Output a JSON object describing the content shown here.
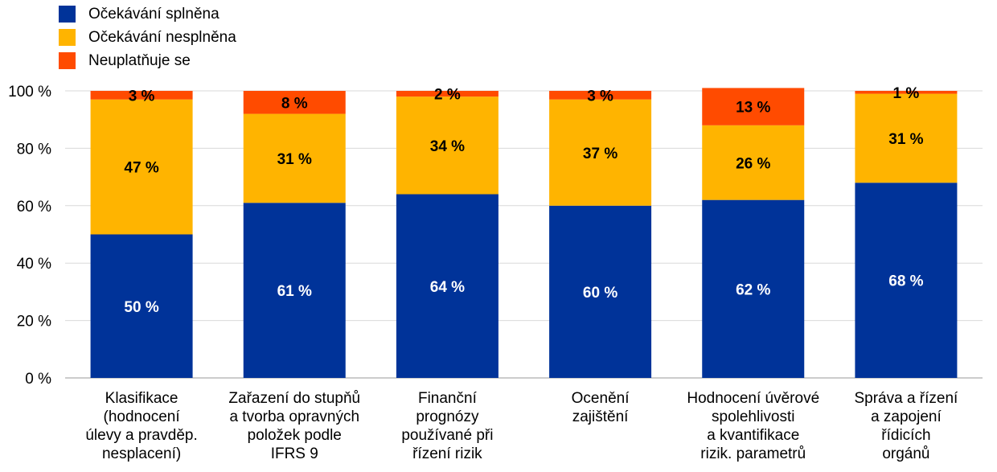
{
  "chart_data": {
    "type": "bar",
    "stacked": true,
    "percent": true,
    "title": "",
    "xlabel": "",
    "ylabel": "",
    "ylim": [
      0,
      100
    ],
    "y_ticks": [
      "0 %",
      "20 %",
      "40 %",
      "60 %",
      "80 %",
      "100 %"
    ],
    "grid": true,
    "legend_position": "top-left",
    "categories": [
      [
        "Klasifikace",
        "(hodnocení",
        "úlevy a pravděp.",
        "nesplacení)"
      ],
      [
        "Zařazení do stupňů",
        "a tvorba opravných",
        "položek podle",
        "IFRS 9"
      ],
      [
        "Finanční",
        "prognózy",
        "používané při",
        "řízení rizik"
      ],
      [
        "Ocenění",
        "zajištění"
      ],
      [
        "Hodnocení úvěrové",
        "spolehlivosti",
        "a kvantifikace",
        "rizik. parametrů"
      ],
      [
        "Správa a řízení",
        "a zapojení",
        "řídicích",
        "orgánů"
      ]
    ],
    "series": [
      {
        "name": "Očekávání splněna",
        "color": "#003399",
        "label_color": "#ffffff",
        "values": [
          50,
          61,
          64,
          60,
          62,
          68
        ],
        "labels": [
          "50 %",
          "61 %",
          "64 %",
          "60 %",
          "62 %",
          "68 %"
        ]
      },
      {
        "name": "Očekávání nesplněna",
        "color": "#FFB400",
        "label_color": "#000000",
        "values": [
          47,
          31,
          34,
          37,
          26,
          31
        ],
        "labels": [
          "47 %",
          "31 %",
          "34 %",
          "37 %",
          "26 %",
          "31 %"
        ]
      },
      {
        "name": "Neuplatňuje se",
        "color": "#FF4B00",
        "label_color": "#000000",
        "values": [
          3,
          8,
          2,
          3,
          13,
          1
        ],
        "labels": [
          "3 %",
          "8 %",
          "2 %",
          "3 %",
          "13 %",
          "1 %"
        ]
      }
    ]
  }
}
